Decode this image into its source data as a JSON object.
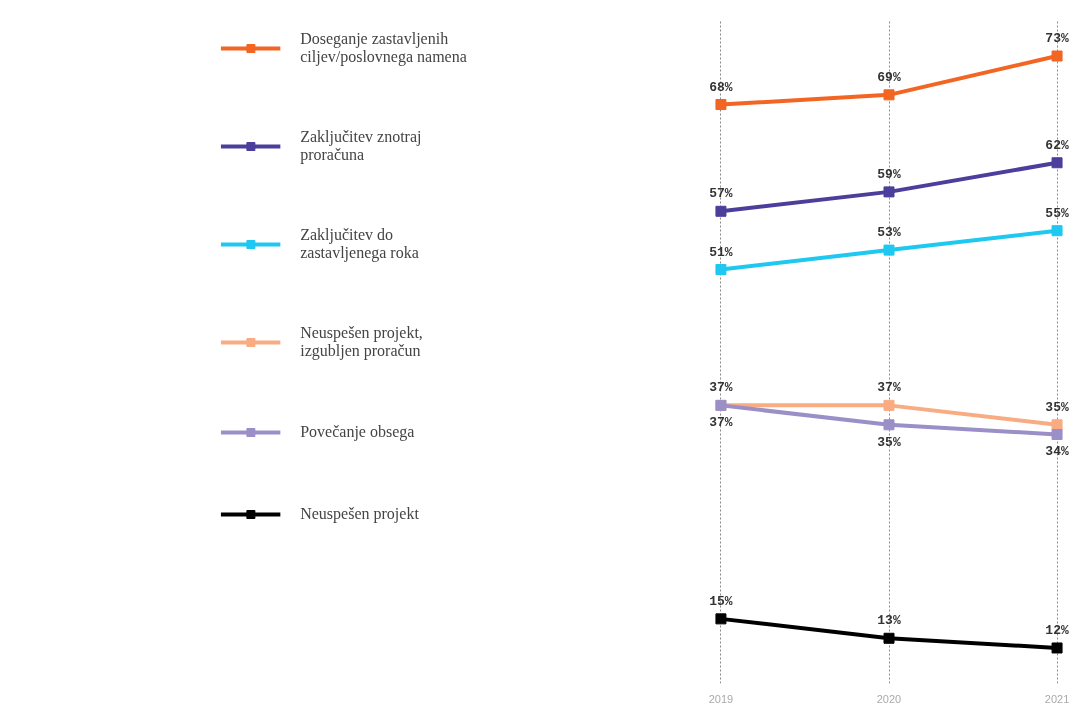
{
  "chart_data": {
    "type": "line",
    "categories": [
      "2019",
      "2020",
      "2021"
    ],
    "series": [
      {
        "name": "Doseganje zastavljenih ciljev/poslovnega namena",
        "color": "#f26522",
        "values": [
          68,
          69,
          73
        ],
        "value_labels": [
          "68%",
          "69%",
          "73%"
        ]
      },
      {
        "name": "Zaključitev znotraj proračuna",
        "color": "#4b3f9b",
        "values": [
          57,
          59,
          62
        ],
        "value_labels": [
          "57%",
          "59%",
          "62%"
        ]
      },
      {
        "name": "Zaključitev do zastavljenega roka",
        "color": "#1ec8f0",
        "values": [
          51,
          53,
          55
        ],
        "value_labels": [
          "51%",
          "53%",
          "55%"
        ]
      },
      {
        "name": "Neuspešen projekt, izgubljen proračun",
        "color": "#f9ab82",
        "values": [
          37,
          37,
          35
        ],
        "value_labels": [
          "37%",
          "37%",
          "35%"
        ]
      },
      {
        "name": "Povečanje obsega",
        "color": "#9b8fc8",
        "values": [
          37,
          35,
          34
        ],
        "value_labels": [
          "37%",
          "35%",
          "34%"
        ]
      },
      {
        "name": "Neuspešen projekt",
        "color": "#000000",
        "values": [
          15,
          13,
          12
        ],
        "value_labels": [
          "15%",
          "13%",
          "12%"
        ]
      }
    ],
    "grid": "x",
    "legend": "left",
    "marker": "square",
    "line_style": "solid",
    "tick_labels": "x"
  }
}
